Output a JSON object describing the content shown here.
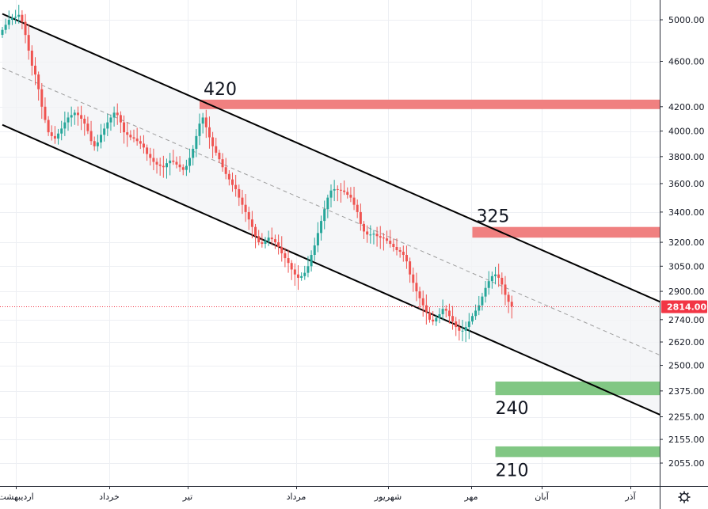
{
  "chart_data": {
    "type": "candlestick",
    "y_ticks": [
      5000,
      4600,
      4200,
      4000,
      3800,
      3600,
      3400,
      3200,
      3050,
      2900,
      2740,
      2620,
      2500,
      2375,
      2255,
      2155,
      2055
    ],
    "y_tick_labels": [
      "5000.00",
      "4600.00",
      "4200.00",
      "4000.00",
      "3800.00",
      "3600.00",
      "3400.00",
      "3200.00",
      "3050.00",
      "2900.00",
      "2740.00",
      "2620.00",
      "2500.00",
      "2375.00",
      "2255.00",
      "2155.00",
      "2055.00"
    ],
    "x_labels": [
      "اردیبهشت",
      "خرداد",
      "تیر",
      "مرداد",
      "شهریور",
      "مهر",
      "آبان",
      "آذر"
    ],
    "last_price": 2814,
    "last_price_label": "2814.00",
    "colors": {
      "up": "#26a69a",
      "down": "#ef5350",
      "resistance": "#f08080",
      "support": "#81c784",
      "channel": "#000000",
      "midline": "#9e9e9e",
      "last_price": "#f23645"
    },
    "channel": {
      "upper": [
        [
          0,
          5060
        ],
        [
          210,
          2760
        ]
      ],
      "lower": [
        [
          0,
          4050
        ],
        [
          210,
          2200
        ]
      ],
      "mid": [
        [
          0,
          4540
        ],
        [
          210,
          2480
        ]
      ]
    },
    "zones": [
      {
        "kind": "resistance",
        "label": "420",
        "from_index": 60,
        "price_low": 4180,
        "price_high": 4260
      },
      {
        "kind": "resistance",
        "label": "325",
        "from_index": 143,
        "price_low": 3230,
        "price_high": 3300
      },
      {
        "kind": "support",
        "label": "240",
        "from_index": 150,
        "price_low": 2355,
        "price_high": 2420
      },
      {
        "kind": "support",
        "label": "210",
        "from_index": 150,
        "price_low": 2080,
        "price_high": 2125
      }
    ],
    "close": [
      4900,
      4950,
      5000,
      5020,
      5030,
      5050,
      4980,
      4850,
      4700,
      4560,
      4480,
      4350,
      4200,
      4090,
      3990,
      3960,
      3940,
      3980,
      4020,
      4070,
      4110,
      4130,
      4150,
      4130,
      4100,
      4060,
      4000,
      3920,
      3880,
      3910,
      3970,
      4020,
      4070,
      4110,
      4150,
      4130,
      4070,
      3990,
      3970,
      3950,
      3940,
      3920,
      3900,
      3870,
      3820,
      3790,
      3760,
      3740,
      3730,
      3720,
      3750,
      3770,
      3760,
      3740,
      3720,
      3700,
      3730,
      3790,
      3860,
      3960,
      4060,
      4110,
      4030,
      3950,
      3880,
      3830,
      3780,
      3720,
      3670,
      3630,
      3590,
      3560,
      3500,
      3450,
      3400,
      3350,
      3300,
      3240,
      3200,
      3190,
      3210,
      3230,
      3220,
      3200,
      3170,
      3130,
      3100,
      3070,
      3030,
      3000,
      2980,
      2990,
      3010,
      3050,
      3120,
      3180,
      3260,
      3340,
      3420,
      3500,
      3550,
      3560,
      3555,
      3550,
      3540,
      3520,
      3500,
      3450,
      3400,
      3320,
      3270,
      3250,
      3250,
      3255,
      3240,
      3230,
      3225,
      3210,
      3190,
      3170,
      3150,
      3140,
      3120,
      3080,
      3000,
      2950,
      2900,
      2860,
      2820,
      2780,
      2740,
      2730,
      2750,
      2770,
      2800,
      2790,
      2760,
      2730,
      2700,
      2680,
      2680,
      2700,
      2730,
      2760,
      2790,
      2820,
      2870,
      2920,
      2960,
      2990,
      3000,
      2980,
      2940,
      2880,
      2840,
      2814
    ]
  }
}
